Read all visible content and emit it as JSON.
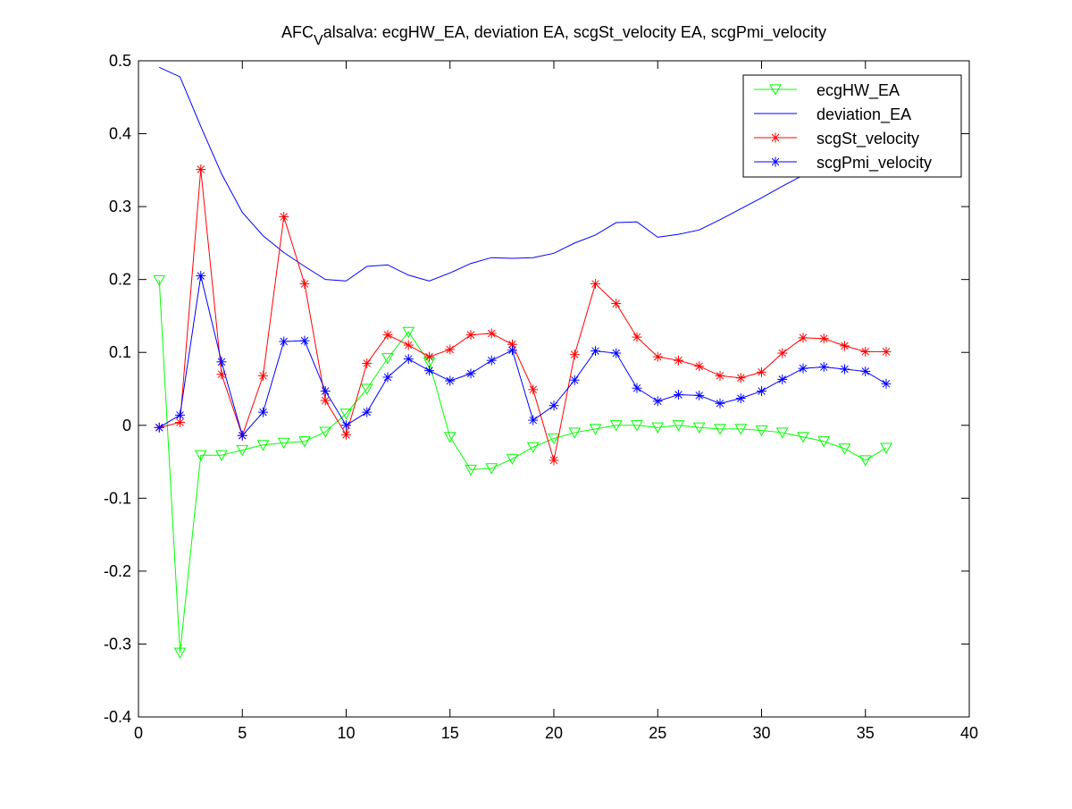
{
  "chart_data": {
    "type": "line",
    "title": {
      "prefix": "AFC",
      "subscript": "V",
      "suffix": "alsalva: ecgHW_EA, deviation EA, scgSt_velocity EA, scgPmi_velocity"
    },
    "xlabel": "",
    "ylabel": "",
    "xlim": [
      0,
      40
    ],
    "ylim": [
      -0.4,
      0.5
    ],
    "xticks": [
      0,
      5,
      10,
      15,
      20,
      25,
      30,
      35,
      40
    ],
    "yticks": [
      -0.4,
      -0.3,
      -0.2,
      -0.1,
      0,
      0.1,
      0.2,
      0.3,
      0.4,
      0.5
    ],
    "xtick_labels": [
      "0",
      "5",
      "10",
      "15",
      "20",
      "25",
      "30",
      "35",
      "40"
    ],
    "ytick_labels": [
      "-0.4",
      "-0.3",
      "-0.2",
      "-0.1",
      "0",
      "0.1",
      "0.2",
      "0.3",
      "0.4",
      "0.5"
    ],
    "grid": false,
    "legend_position": "top-right",
    "x": [
      1,
      2,
      3,
      4,
      5,
      6,
      7,
      8,
      9,
      10,
      11,
      12,
      13,
      14,
      15,
      16,
      17,
      18,
      19,
      20,
      21,
      22,
      23,
      24,
      25,
      26,
      27,
      28,
      29,
      30,
      31,
      32,
      33,
      34,
      35,
      36
    ],
    "series": [
      {
        "name": "ecgHW_EA",
        "color": "#00ff00",
        "marker": "triangle-down",
        "values": [
          0.199,
          -0.312,
          -0.041,
          -0.041,
          -0.034,
          -0.027,
          -0.024,
          -0.022,
          -0.009,
          0.016,
          0.05,
          0.092,
          0.128,
          0.086,
          -0.016,
          -0.061,
          -0.059,
          -0.046,
          -0.03,
          -0.018,
          -0.01,
          -0.005,
          0.0,
          0.0,
          -0.003,
          0.0,
          -0.003,
          -0.005,
          -0.005,
          -0.007,
          -0.01,
          -0.016,
          -0.022,
          -0.032,
          -0.048,
          -0.031
        ]
      },
      {
        "name": "deviation_EA",
        "color": "#0000ff",
        "marker": "none",
        "values": [
          0.491,
          0.478,
          0.41,
          0.345,
          0.292,
          0.26,
          0.237,
          0.218,
          0.2,
          0.198,
          0.218,
          0.22,
          0.206,
          0.198,
          0.209,
          0.222,
          0.23,
          0.229,
          0.23,
          0.236,
          0.25,
          0.261,
          0.278,
          0.279,
          0.258,
          0.262,
          0.268,
          0.282,
          0.297,
          0.312,
          0.328,
          0.343,
          0.358,
          0.372,
          0.387,
          0.402
        ]
      },
      {
        "name": "scgSt_velocity",
        "color": "#ff0000",
        "marker": "asterisk",
        "values": [
          -0.003,
          0.004,
          0.351,
          0.07,
          -0.014,
          0.068,
          0.286,
          0.194,
          0.034,
          -0.013,
          0.085,
          0.124,
          0.11,
          0.094,
          0.104,
          0.124,
          0.126,
          0.111,
          0.049,
          -0.048,
          0.097,
          0.194,
          0.167,
          0.121,
          0.094,
          0.089,
          0.081,
          0.068,
          0.065,
          0.073,
          0.099,
          0.12,
          0.119,
          0.109,
          0.101,
          0.101
        ]
      },
      {
        "name": "scgPmi_velocity",
        "color": "#0000ff",
        "marker": "asterisk",
        "values": [
          -0.003,
          0.014,
          0.205,
          0.087,
          -0.014,
          0.018,
          0.115,
          0.116,
          0.047,
          0.0,
          0.018,
          0.066,
          0.091,
          0.075,
          0.061,
          0.071,
          0.089,
          0.103,
          0.007,
          0.027,
          0.062,
          0.102,
          0.099,
          0.051,
          0.033,
          0.042,
          0.041,
          0.03,
          0.037,
          0.047,
          0.063,
          0.078,
          0.08,
          0.077,
          0.074,
          0.057
        ]
      }
    ]
  }
}
